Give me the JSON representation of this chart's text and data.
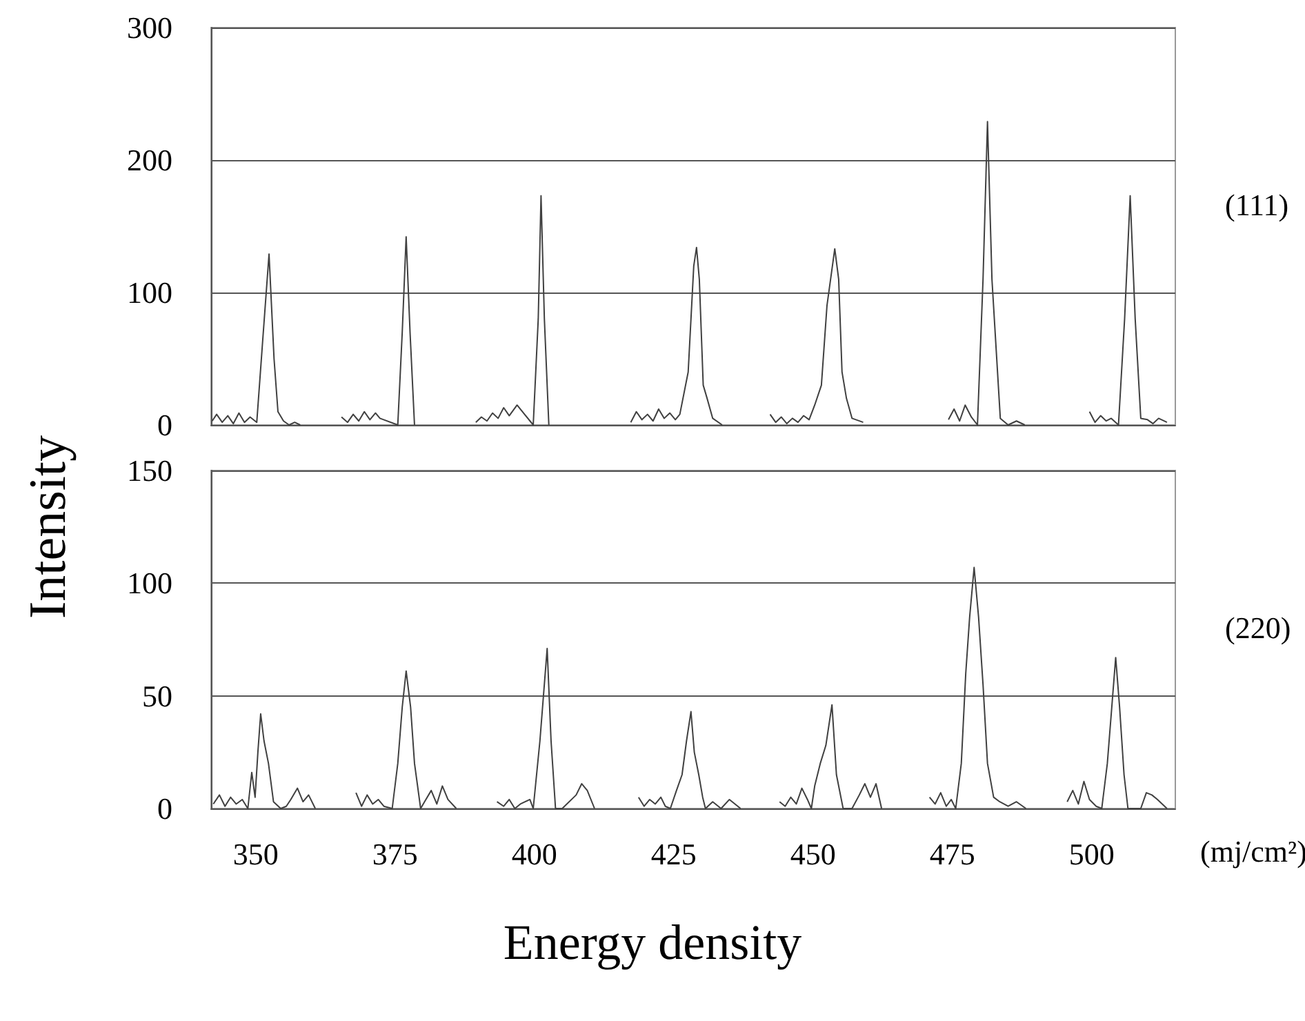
{
  "chart_data": [
    {
      "type": "line",
      "ylabel": "Intensity",
      "annotations": [
        "(111)"
      ],
      "xlim": [
        342,
        515
      ],
      "xticks": [
        350,
        375,
        400,
        425,
        450,
        475,
        500
      ],
      "ylim": [
        0,
        300
      ],
      "yticks": [
        0,
        100,
        200,
        300
      ],
      "tick_labels": "y",
      "grid": "y",
      "marker": "none",
      "line_style": "solid",
      "series": [
        {
          "color": "#404040",
          "x": [
            342.2,
            343,
            344,
            345,
            346,
            347,
            348,
            349,
            350.2,
            351.2,
            352.4,
            353.3,
            354,
            355,
            356,
            357,
            358
          ],
          "values": [
            3,
            8,
            2,
            7,
            1,
            9,
            2,
            6,
            2,
            60,
            129,
            50,
            10,
            3,
            0,
            2,
            0
          ]
        },
        {
          "color": "#404040",
          "x": [
            365.4,
            366.5,
            367.5,
            368.5,
            369.5,
            370.5,
            371.5,
            372.3,
            375.5,
            376.3,
            377,
            377.7,
            378.5
          ],
          "values": [
            6,
            2,
            8,
            3,
            10,
            4,
            9,
            5,
            0,
            70,
            142,
            70,
            0
          ]
        },
        {
          "color": "#404040",
          "x": [
            389.5,
            390.5,
            391.5,
            392.5,
            393.5,
            394.5,
            395.5,
            396.9,
            399.8,
            400.7,
            401.2,
            401.8,
            402.6
          ],
          "values": [
            2,
            6,
            3,
            9,
            5,
            13,
            7,
            15,
            0,
            80,
            173,
            80,
            0
          ]
        },
        {
          "color": "#404040",
          "x": [
            417.3,
            418.3,
            419.3,
            420.3,
            421.3,
            422.3,
            423.3,
            424.3,
            425.3,
            426.1,
            427.6,
            428.6,
            429.1,
            429.6,
            430.3,
            431,
            432,
            433.7
          ],
          "values": [
            2,
            10,
            4,
            8,
            3,
            12,
            5,
            9,
            4,
            8,
            40,
            120,
            134,
            110,
            30,
            20,
            5,
            0
          ]
        },
        {
          "color": "#404040",
          "x": [
            442.3,
            443.3,
            444.3,
            445.3,
            446.3,
            447.3,
            448.3,
            449.3,
            450.3,
            451.5,
            452.5,
            453.9,
            454.6,
            455.2,
            456,
            457,
            459
          ],
          "values": [
            8,
            2,
            6,
            1,
            5,
            2,
            7,
            4,
            15,
            30,
            90,
            133,
            110,
            40,
            20,
            5,
            2
          ]
        },
        {
          "color": "#404040",
          "x": [
            474.3,
            475.3,
            476.3,
            477.3,
            478.4,
            479.5,
            480.5,
            481.3,
            482.1,
            483.6,
            485,
            486.5,
            488
          ],
          "values": [
            4,
            12,
            3,
            15,
            6,
            0,
            110,
            229,
            110,
            5,
            0,
            3,
            0
          ]
        },
        {
          "color": "#404040",
          "x": [
            499.6,
            500.6,
            501.6,
            502.6,
            503.5,
            504.8,
            505.9,
            506.9,
            507.8,
            508.8,
            510,
            511,
            512,
            513.5
          ],
          "values": [
            10,
            2,
            7,
            3,
            5,
            0,
            80,
            173,
            80,
            5,
            4,
            1,
            5,
            2
          ]
        }
      ]
    },
    {
      "type": "line",
      "xlabel": "Energy density",
      "annotations": [
        "(220)",
        "(mj/cm²)"
      ],
      "xlim": [
        342,
        515
      ],
      "xticks": [
        350,
        375,
        400,
        425,
        450,
        475,
        500
      ],
      "ylim": [
        0,
        150
      ],
      "yticks": [
        0,
        50,
        100,
        150
      ],
      "grid": "y",
      "marker": "none",
      "line_style": "solid",
      "series": [
        {
          "color": "#404040",
          "x": [
            342.4,
            343.5,
            344.5,
            345.5,
            346.5,
            347.6,
            348.6,
            349.3,
            349.9,
            350.4,
            350.9,
            351.5,
            352.3,
            353.2,
            354.5,
            355.5,
            356.3,
            357.5,
            358.5,
            359.5,
            360.7
          ],
          "values": [
            2,
            6,
            1,
            5,
            2,
            4,
            0,
            16,
            5,
            25,
            42,
            30,
            20,
            3,
            0,
            1,
            4,
            9,
            3,
            6,
            0
          ]
        },
        {
          "color": "#404040",
          "x": [
            368,
            369,
            370,
            371,
            372,
            373,
            374.5,
            375.5,
            376.3,
            377,
            377.8,
            378.5,
            379.6,
            380.3,
            381.5,
            382.5,
            383.5,
            384.5,
            386
          ],
          "values": [
            7,
            1,
            6,
            2,
            4,
            1,
            0,
            20,
            45,
            61,
            45,
            20,
            0,
            3,
            8,
            2,
            10,
            4,
            0
          ]
        },
        {
          "color": "#404040",
          "x": [
            393.3,
            394.5,
            395.5,
            396.5,
            397.5,
            399.2,
            399.8,
            401,
            402.3,
            403,
            403.8,
            405,
            407.5,
            408.5,
            409.5,
            410.8
          ],
          "values": [
            3,
            1,
            4,
            0,
            2,
            4,
            0,
            30,
            71,
            30,
            0,
            0,
            6,
            11,
            8,
            0
          ]
        },
        {
          "color": "#404040",
          "x": [
            418.7,
            419.7,
            420.7,
            421.7,
            422.7,
            423.5,
            424.4,
            425.5,
            426.5,
            427.3,
            428.1,
            428.7,
            429.5,
            430.2,
            430.7,
            432,
            433.5,
            435,
            437
          ],
          "values": [
            5,
            1,
            4,
            2,
            5,
            1,
            0,
            8,
            15,
            30,
            43,
            25,
            15,
            5,
            0,
            3,
            0,
            4,
            0
          ]
        },
        {
          "color": "#404040",
          "x": [
            444,
            445,
            446,
            447,
            448,
            449,
            449.7,
            450.3,
            451.3,
            452.3,
            453.4,
            454.2,
            455.4,
            457,
            458.3,
            459.3,
            460.3,
            461.3,
            462.3
          ],
          "values": [
            3,
            1,
            5,
            2,
            9,
            4,
            0,
            10,
            20,
            28,
            46,
            15,
            0,
            0,
            6,
            11,
            5,
            11,
            0
          ]
        },
        {
          "color": "#404040",
          "x": [
            470.9,
            471.9,
            472.9,
            473.9,
            474.8,
            475.6,
            476.6,
            477.4,
            478.1,
            478.9,
            479.7,
            480.5,
            481.3,
            482.4,
            483.5,
            485,
            486.5,
            488.2
          ],
          "values": [
            5,
            2,
            7,
            1,
            4,
            0,
            20,
            60,
            85,
            107,
            85,
            55,
            20,
            5,
            3,
            1,
            3,
            0
          ]
        },
        {
          "color": "#404040",
          "x": [
            495.6,
            496.6,
            497.6,
            498.6,
            499.6,
            500.8,
            501.8,
            502.8,
            503.6,
            504.3,
            505,
            505.8,
            506.5,
            508.8,
            509.8,
            510.8,
            511.8,
            513.5
          ],
          "values": [
            3,
            8,
            2,
            12,
            4,
            1,
            0,
            20,
            45,
            67,
            45,
            15,
            0,
            0,
            7,
            6,
            4,
            0
          ]
        }
      ]
    }
  ]
}
